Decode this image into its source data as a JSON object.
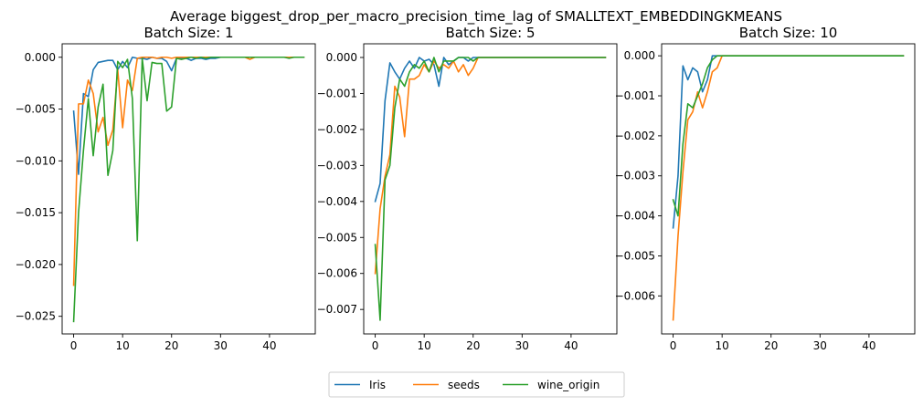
{
  "figure": {
    "suptitle": "Average biggest_drop_per_macro_precision_time_lag of SMALLTEXT_EMBEDDINGKMEANS"
  },
  "legend": {
    "placement": "bottom-center",
    "entries": [
      {
        "name": "Iris",
        "color": "#1f77b4"
      },
      {
        "name": "seeds",
        "color": "#ff7f0e"
      },
      {
        "name": "wine_origin",
        "color": "#2ca02c"
      }
    ]
  },
  "chart_data": [
    {
      "type": "line",
      "title": "Batch Size: 1",
      "xlabel": "",
      "ylabel": "",
      "xlim": [
        -2.35,
        49.35
      ],
      "ylim": [
        -0.0267,
        0.0013
      ],
      "xticks": [
        0,
        10,
        20,
        30,
        40
      ],
      "yticks": [
        -0.025,
        -0.02,
        -0.015,
        -0.01,
        -0.005,
        0.0
      ],
      "ytick_labels": [
        "−0.025",
        "−0.020",
        "−0.015",
        "−0.010",
        "−0.005",
        "0.000"
      ],
      "grid": false,
      "series": [
        {
          "name": "Iris",
          "color": "#1f77b4",
          "x": [
            0,
            1,
            2,
            3,
            4,
            5,
            6,
            7,
            8,
            9,
            10,
            11,
            12,
            13,
            14,
            15,
            16,
            17,
            18,
            19,
            20,
            21,
            22,
            23,
            24,
            25,
            26,
            27,
            28,
            29,
            30,
            31,
            32,
            33,
            34,
            35,
            36,
            37,
            38,
            39,
            40,
            41,
            42,
            43,
            44,
            45,
            46,
            47
          ],
          "y": [
            -0.0052,
            -0.0113,
            -0.0035,
            -0.0038,
            -0.0012,
            -0.0005,
            -0.0004,
            -0.0003,
            -0.0003,
            -0.0012,
            -0.0004,
            -0.001,
            0.0,
            -0.0001,
            -0.0001,
            -0.0002,
            0.0,
            -0.0001,
            -0.0001,
            -0.0004,
            -0.0013,
            -0.0001,
            -0.0001,
            -0.0001,
            -0.0003,
            -0.0001,
            -0.0001,
            -0.0002,
            -0.0001,
            -0.0001,
            0.0,
            0.0,
            0.0,
            0.0,
            0.0,
            0.0,
            0.0,
            0.0,
            0.0,
            0.0,
            0.0,
            0.0,
            0.0,
            0.0,
            0.0,
            0.0,
            0.0,
            0.0
          ]
        },
        {
          "name": "seeds",
          "color": "#ff7f0e",
          "x": [
            0,
            1,
            2,
            3,
            4,
            5,
            6,
            7,
            8,
            9,
            10,
            11,
            12,
            13,
            14,
            15,
            16,
            17,
            18,
            19,
            20,
            21,
            22,
            23,
            24,
            25,
            26,
            27,
            28,
            29,
            30,
            31,
            32,
            33,
            34,
            35,
            36,
            37,
            38,
            39,
            40,
            41,
            42,
            43,
            44,
            45,
            46,
            47
          ],
          "y": [
            -0.022,
            -0.0045,
            -0.0045,
            -0.0022,
            -0.0035,
            -0.0072,
            -0.0058,
            -0.0085,
            -0.007,
            -0.0012,
            -0.0068,
            -0.0022,
            -0.0032,
            -0.0001,
            0.0,
            0.0,
            0.0,
            -0.0001,
            0.0,
            0.0,
            -0.0001,
            0.0,
            0.0,
            0.0,
            0.0,
            0.0,
            0.0,
            0.0,
            0.0,
            0.0,
            0.0,
            0.0,
            0.0,
            0.0,
            0.0,
            0.0,
            -0.0002,
            0.0,
            0.0,
            0.0,
            0.0,
            0.0,
            0.0,
            0.0,
            0.0,
            0.0,
            0.0,
            0.0
          ]
        },
        {
          "name": "wine_origin",
          "color": "#2ca02c",
          "x": [
            0,
            1,
            2,
            3,
            4,
            5,
            6,
            7,
            8,
            9,
            10,
            11,
            12,
            13,
            14,
            15,
            16,
            17,
            18,
            19,
            20,
            21,
            22,
            23,
            24,
            25,
            26,
            27,
            28,
            29,
            30,
            31,
            32,
            33,
            34,
            35,
            36,
            37,
            38,
            39,
            40,
            41,
            42,
            43,
            44,
            45,
            46,
            47
          ],
          "y": [
            -0.0255,
            -0.015,
            -0.009,
            -0.004,
            -0.0095,
            -0.0048,
            -0.0026,
            -0.0114,
            -0.009,
            -0.0004,
            -0.001,
            -0.0002,
            -0.004,
            -0.0177,
            -0.0001,
            -0.0042,
            -0.0005,
            -0.0006,
            -0.0006,
            -0.0052,
            -0.0048,
            -0.0001,
            -0.0002,
            -0.0001,
            0.0,
            -0.0001,
            0.0,
            -0.0001,
            0.0,
            0.0,
            0.0,
            0.0,
            0.0,
            0.0,
            0.0,
            0.0,
            0.0,
            0.0,
            0.0,
            0.0,
            0.0,
            0.0,
            0.0,
            0.0,
            -0.0001,
            0.0,
            0.0,
            0.0
          ]
        }
      ]
    },
    {
      "type": "line",
      "title": "Batch Size: 5",
      "xlabel": "",
      "ylabel": "",
      "xlim": [
        -2.35,
        49.35
      ],
      "ylim": [
        -0.00768,
        0.00038
      ],
      "xticks": [
        0,
        10,
        20,
        30,
        40
      ],
      "yticks": [
        -0.007,
        -0.006,
        -0.005,
        -0.004,
        -0.003,
        -0.002,
        -0.001,
        0.0
      ],
      "ytick_labels": [
        "−0.007",
        "−0.006",
        "−0.005",
        "−0.004",
        "−0.003",
        "−0.002",
        "−0.001",
        "0.000"
      ],
      "grid": false,
      "series": [
        {
          "name": "Iris",
          "color": "#1f77b4",
          "x": [
            0,
            1,
            2,
            3,
            4,
            5,
            6,
            7,
            8,
            9,
            10,
            11,
            12,
            13,
            14,
            15,
            16,
            17,
            18,
            19,
            20,
            21,
            22,
            23,
            24,
            25,
            26,
            27,
            28,
            29,
            30,
            31,
            32,
            33,
            34,
            35,
            36,
            37,
            38,
            39,
            40,
            41,
            42,
            43,
            44,
            45,
            46,
            47
          ],
          "y": [
            -0.004,
            -0.0035,
            -0.0012,
            -0.00015,
            -0.0004,
            -0.0006,
            -0.0003,
            -0.0001,
            -0.0003,
            0.0,
            -0.0001,
            -5e-05,
            -0.0002,
            -0.0008,
            0.0,
            -0.0002,
            -0.0001,
            0.0,
            0.0,
            -0.0001,
            0.0,
            0.0,
            0.0,
            0.0,
            0.0,
            0.0,
            0.0,
            0.0,
            0.0,
            0.0,
            0.0,
            0.0,
            0.0,
            0.0,
            0.0,
            0.0,
            0.0,
            0.0,
            0.0,
            0.0,
            0.0,
            0.0,
            0.0,
            0.0,
            0.0,
            0.0,
            0.0,
            0.0
          ]
        },
        {
          "name": "seeds",
          "color": "#ff7f0e",
          "x": [
            0,
            1,
            2,
            3,
            4,
            5,
            6,
            7,
            8,
            9,
            10,
            11,
            12,
            13,
            14,
            15,
            16,
            17,
            18,
            19,
            20,
            21,
            22,
            23,
            24,
            25,
            26,
            27,
            28,
            29,
            30,
            31,
            32,
            33,
            34,
            35,
            36,
            37,
            38,
            39,
            40,
            41,
            42,
            43,
            44,
            45,
            46,
            47
          ],
          "y": [
            -0.006,
            -0.0042,
            -0.0033,
            -0.0027,
            -0.0008,
            -0.0011,
            -0.0022,
            -0.0006,
            -0.0006,
            -0.0005,
            -0.0002,
            -0.0004,
            -0.0001,
            -0.0003,
            -0.0002,
            -0.0003,
            -0.0001,
            -0.0004,
            -0.0002,
            -0.0005,
            -0.0003,
            0.0,
            0.0,
            0.0,
            0.0,
            0.0,
            0.0,
            0.0,
            0.0,
            0.0,
            0.0,
            0.0,
            0.0,
            0.0,
            0.0,
            0.0,
            0.0,
            0.0,
            0.0,
            0.0,
            0.0,
            0.0,
            0.0,
            0.0,
            0.0,
            0.0,
            0.0,
            0.0
          ]
        },
        {
          "name": "wine_origin",
          "color": "#2ca02c",
          "x": [
            0,
            1,
            2,
            3,
            4,
            5,
            6,
            7,
            8,
            9,
            10,
            11,
            12,
            13,
            14,
            15,
            16,
            17,
            18,
            19,
            20,
            21,
            22,
            23,
            24,
            25,
            26,
            27,
            28,
            29,
            30,
            31,
            32,
            33,
            34,
            35,
            36,
            37,
            38,
            39,
            40,
            41,
            42,
            43,
            44,
            45,
            46,
            47
          ],
          "y": [
            -0.0052,
            -0.0073,
            -0.0034,
            -0.003,
            -0.0014,
            -0.0006,
            -0.0008,
            -0.0004,
            -0.0002,
            -0.0003,
            -0.0001,
            -0.0004,
            0.0,
            -0.0004,
            -0.0001,
            -0.0001,
            -0.0001,
            0.0,
            0.0,
            0.0,
            -0.0001,
            0.0,
            0.0,
            0.0,
            0.0,
            0.0,
            0.0,
            0.0,
            0.0,
            0.0,
            0.0,
            0.0,
            0.0,
            0.0,
            0.0,
            0.0,
            0.0,
            0.0,
            0.0,
            0.0,
            0.0,
            0.0,
            0.0,
            0.0,
            0.0,
            0.0,
            0.0,
            0.0
          ]
        }
      ]
    },
    {
      "type": "line",
      "title": "Batch Size: 10",
      "xlabel": "",
      "ylabel": "",
      "xlim": [
        -2.35,
        49.35
      ],
      "ylim": [
        -0.00695,
        0.0003
      ],
      "xticks": [
        0,
        10,
        20,
        30,
        40
      ],
      "yticks": [
        -0.006,
        -0.005,
        -0.004,
        -0.003,
        -0.002,
        -0.001,
        0.0
      ],
      "ytick_labels": [
        "−0.006",
        "−0.005",
        "−0.004",
        "−0.003",
        "−0.002",
        "−0.001",
        "0.000"
      ],
      "grid": false,
      "series": [
        {
          "name": "Iris",
          "color": "#1f77b4",
          "x": [
            0,
            1,
            2,
            3,
            4,
            5,
            6,
            7,
            8,
            9,
            10,
            11,
            12,
            13,
            14,
            15,
            16,
            17,
            18,
            19,
            20,
            21,
            22,
            23,
            24,
            25,
            26,
            27,
            28,
            29,
            30,
            31,
            32,
            33,
            34,
            35,
            36,
            37,
            38,
            39,
            40,
            41,
            42,
            43,
            44,
            45,
            46,
            47
          ],
          "y": [
            -0.0043,
            -0.003,
            -0.00025,
            -0.0006,
            -0.0003,
            -0.0004,
            -0.0009,
            -0.0006,
            0.0,
            0.0,
            0.0,
            0.0,
            0.0,
            0.0,
            0.0,
            0.0,
            0.0,
            0.0,
            0.0,
            0.0,
            0.0,
            0.0,
            0.0,
            0.0,
            0.0,
            0.0,
            0.0,
            0.0,
            0.0,
            0.0,
            0.0,
            0.0,
            0.0,
            0.0,
            0.0,
            0.0,
            0.0,
            0.0,
            0.0,
            0.0,
            0.0,
            0.0,
            0.0,
            0.0,
            0.0,
            0.0,
            0.0,
            0.0
          ]
        },
        {
          "name": "seeds",
          "color": "#ff7f0e",
          "x": [
            0,
            1,
            2,
            3,
            4,
            5,
            6,
            7,
            8,
            9,
            10,
            11,
            12,
            13,
            14,
            15,
            16,
            17,
            18,
            19,
            20,
            21,
            22,
            23,
            24,
            25,
            26,
            27,
            28,
            29,
            30,
            31,
            32,
            33,
            34,
            35,
            36,
            37,
            38,
            39,
            40,
            41,
            42,
            43,
            44,
            45,
            46,
            47
          ],
          "y": [
            -0.0066,
            -0.0045,
            -0.0029,
            -0.0016,
            -0.0014,
            -0.0009,
            -0.0013,
            -0.0009,
            -0.0004,
            -0.0003,
            0.0,
            0.0,
            0.0,
            0.0,
            0.0,
            0.0,
            0.0,
            0.0,
            0.0,
            0.0,
            0.0,
            0.0,
            0.0,
            0.0,
            0.0,
            0.0,
            0.0,
            0.0,
            0.0,
            0.0,
            0.0,
            0.0,
            0.0,
            0.0,
            0.0,
            0.0,
            0.0,
            0.0,
            0.0,
            0.0,
            0.0,
            0.0,
            0.0,
            0.0,
            0.0,
            0.0,
            0.0,
            0.0
          ]
        },
        {
          "name": "wine_origin",
          "color": "#2ca02c",
          "x": [
            0,
            1,
            2,
            3,
            4,
            5,
            6,
            7,
            8,
            9,
            10,
            11,
            12,
            13,
            14,
            15,
            16,
            17,
            18,
            19,
            20,
            21,
            22,
            23,
            24,
            25,
            26,
            27,
            28,
            29,
            30,
            31,
            32,
            33,
            34,
            35,
            36,
            37,
            38,
            39,
            40,
            41,
            42,
            43,
            44,
            45,
            46,
            47
          ],
          "y": [
            -0.0036,
            -0.004,
            -0.0022,
            -0.0012,
            -0.0013,
            -0.001,
            -0.0007,
            -0.0003,
            -0.0001,
            0.0,
            0.0,
            0.0,
            0.0,
            0.0,
            0.0,
            0.0,
            0.0,
            0.0,
            0.0,
            0.0,
            0.0,
            0.0,
            0.0,
            0.0,
            0.0,
            0.0,
            0.0,
            0.0,
            0.0,
            0.0,
            0.0,
            0.0,
            0.0,
            0.0,
            0.0,
            0.0,
            0.0,
            0.0,
            0.0,
            0.0,
            0.0,
            0.0,
            0.0,
            0.0,
            0.0,
            0.0,
            0.0,
            0.0
          ]
        }
      ]
    }
  ]
}
